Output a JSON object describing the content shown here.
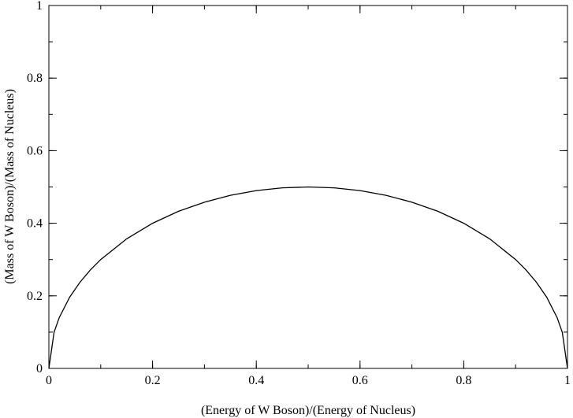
{
  "chart_data": {
    "type": "line",
    "title": "",
    "xlabel": "(Energy of W Boson)/(Energy of Nucleus)",
    "ylabel": "(Mass of W Boson)/(Mass of Nucleus)",
    "xlim": [
      0,
      1
    ],
    "ylim": [
      0,
      1
    ],
    "grid": false,
    "x_ticks": [
      "0",
      "0.2",
      "0.4",
      "0.6",
      "0.8",
      "1"
    ],
    "y_ticks": [
      "0",
      "0.2",
      "0.4",
      "0.6",
      "0.8",
      "1"
    ],
    "x_tick_values": [
      0,
      0.2,
      0.4,
      0.6,
      0.8,
      1
    ],
    "y_tick_values": [
      0,
      0.2,
      0.4,
      0.6,
      0.8,
      1
    ],
    "x_minor_step": 0.1,
    "y_minor_step": 0.1,
    "line_color": "#000000",
    "series": [
      {
        "x": [
          0,
          0.01,
          0.02,
          0.04,
          0.06,
          0.08,
          0.1,
          0.15,
          0.2,
          0.25,
          0.3,
          0.35,
          0.4,
          0.45,
          0.5,
          0.55,
          0.6,
          0.65,
          0.7,
          0.75,
          0.8,
          0.85,
          0.9,
          0.92,
          0.94,
          0.96,
          0.98,
          0.99,
          1
        ],
        "values": [
          0,
          0.0995,
          0.14,
          0.196,
          0.2375,
          0.2713,
          0.3,
          0.357,
          0.4,
          0.433,
          0.458,
          0.477,
          0.49,
          0.4975,
          0.5,
          0.4975,
          0.49,
          0.477,
          0.458,
          0.433,
          0.4,
          0.357,
          0.3,
          0.2713,
          0.2375,
          0.196,
          0.14,
          0.0995,
          0
        ]
      }
    ]
  }
}
